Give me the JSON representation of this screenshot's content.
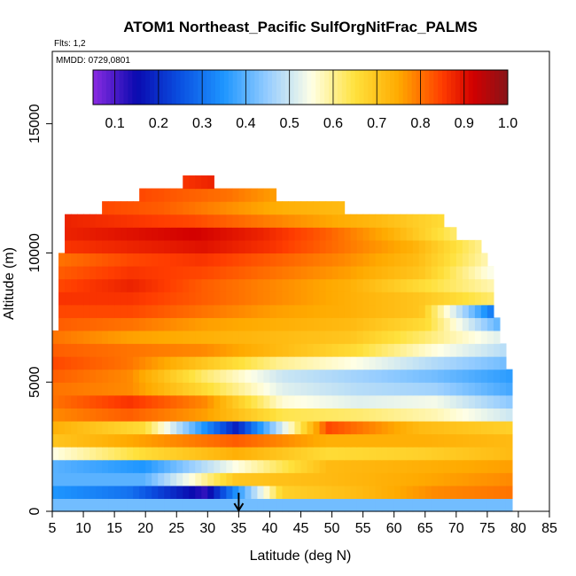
{
  "chart_data": {
    "type": "heatmap",
    "title": "ATOM1 Northeast_Pacific SulfOrgNitFrac_PALMS",
    "subtitle_flights": "Flts: 1,2",
    "subtitle_dates": "MMDD: 0729,0801",
    "xlabel": "Latitude (deg N)",
    "ylabel": "Altitude (m)",
    "xlim": [
      5,
      85
    ],
    "ylim": [
      0,
      17800
    ],
    "xticks": [
      "5",
      "10",
      "15",
      "20",
      "25",
      "30",
      "35",
      "40",
      "45",
      "50",
      "55",
      "60",
      "65",
      "70",
      "75",
      "80",
      "85"
    ],
    "yticks": [
      "0",
      "5000",
      "10000",
      "15000"
    ],
    "colorbar": {
      "range": [
        0.05,
        1.0
      ],
      "ticks": [
        "0.1",
        "0.2",
        "0.3",
        "0.4",
        "0.5",
        "0.6",
        "0.7",
        "0.8",
        "0.9",
        "1.0"
      ]
    },
    "marker": {
      "x": 35,
      "type": "arrow"
    },
    "bands": [
      {
        "y0": 0,
        "y1": 500,
        "x0": 5,
        "x1": 79,
        "values": [
          0.42,
          0.42
        ]
      },
      {
        "y0": 500,
        "y1": 1000,
        "x0": 5,
        "x1": 79,
        "values": [
          0.35,
          0.3,
          0.12,
          0.68,
          0.72,
          0.78,
          0.8
        ]
      },
      {
        "y0": 1000,
        "y1": 1500,
        "x0": 5,
        "x1": 79,
        "values": [
          0.4,
          0.4,
          0.7,
          0.72,
          0.75,
          0.78
        ]
      },
      {
        "y0": 1500,
        "y1": 2000,
        "x0": 5,
        "x1": 79,
        "values": [
          0.4,
          0.35,
          0.55,
          0.72,
          0.74,
          0.76
        ]
      },
      {
        "y0": 2000,
        "y1": 2500,
        "x0": 5,
        "x1": 79,
        "values": [
          0.55,
          0.66,
          0.74,
          0.66,
          0.68,
          0.72
        ]
      },
      {
        "y0": 2500,
        "y1": 3000,
        "x0": 5,
        "x1": 79,
        "values": [
          0.7,
          0.76,
          0.82,
          0.74,
          0.74,
          0.72
        ]
      },
      {
        "y0": 3000,
        "y1": 3500,
        "x0": 5,
        "x1": 79,
        "values": [
          0.74,
          0.66,
          0.18,
          0.84,
          0.72,
          0.68
        ]
      },
      {
        "y0": 3500,
        "y1": 4000,
        "x0": 5,
        "x1": 79,
        "values": [
          0.78,
          0.82,
          0.76,
          0.64,
          0.62,
          0.58,
          0.5
        ]
      },
      {
        "y0": 4000,
        "y1": 4500,
        "x0": 5,
        "x1": 79,
        "values": [
          0.8,
          0.86,
          0.78,
          0.56,
          0.52,
          0.54,
          0.44
        ]
      },
      {
        "y0": 4500,
        "y1": 5000,
        "x0": 5,
        "x1": 79,
        "values": [
          0.8,
          0.78,
          0.66,
          0.52,
          0.48,
          0.46,
          0.38
        ]
      },
      {
        "y0": 5000,
        "y1": 5500,
        "x0": 5,
        "x1": 79,
        "values": [
          0.82,
          0.78,
          0.62,
          0.5,
          0.46,
          0.42,
          0.36
        ]
      },
      {
        "y0": 5500,
        "y1": 6000,
        "x0": 5,
        "x1": 78,
        "values": [
          0.84,
          0.8,
          0.7,
          0.6,
          0.55,
          0.48,
          0.42
        ]
      },
      {
        "y0": 6000,
        "y1": 6500,
        "x0": 5,
        "x1": 78,
        "values": [
          0.82,
          0.8,
          0.78,
          0.72,
          0.66,
          0.56,
          0.48
        ]
      },
      {
        "y0": 6500,
        "y1": 7000,
        "x0": 5,
        "x1": 77,
        "values": [
          0.8,
          0.76,
          0.74,
          0.72,
          0.7,
          0.62,
          0.52
        ]
      },
      {
        "y0": 7000,
        "y1": 7500,
        "x0": 6,
        "x1": 77,
        "values": [
          0.82,
          0.8,
          0.76,
          0.74,
          0.72,
          0.66,
          0.4
        ]
      },
      {
        "y0": 7500,
        "y1": 8000,
        "x0": 6,
        "x1": 76,
        "values": [
          0.84,
          0.84,
          0.8,
          0.76,
          0.74,
          0.7,
          0.3
        ]
      },
      {
        "y0": 8000,
        "y1": 8500,
        "x0": 6,
        "x1": 76,
        "values": [
          0.86,
          0.86,
          0.82,
          0.78,
          0.74,
          0.7,
          0.62
        ]
      },
      {
        "y0": 8500,
        "y1": 9000,
        "x0": 6,
        "x1": 76,
        "values": [
          0.84,
          0.88,
          0.82,
          0.78,
          0.74,
          0.66,
          0.58
        ]
      },
      {
        "y0": 9000,
        "y1": 9500,
        "x0": 6,
        "x1": 76,
        "values": [
          0.82,
          0.86,
          0.84,
          0.8,
          0.76,
          0.7,
          0.54
        ]
      },
      {
        "y0": 9500,
        "y1": 10000,
        "x0": 6,
        "x1": 75,
        "values": [
          0.8,
          0.84,
          0.86,
          0.82,
          0.78,
          0.72,
          0.58
        ]
      },
      {
        "y0": 10000,
        "y1": 10500,
        "x0": 7,
        "x1": 74,
        "values": [
          0.86,
          0.88,
          0.9,
          0.86,
          0.8,
          0.74,
          0.6
        ]
      },
      {
        "y0": 10500,
        "y1": 11000,
        "x0": 7,
        "x1": 70,
        "values": [
          0.88,
          0.9,
          0.92,
          0.88,
          0.82,
          0.74,
          0.62
        ]
      },
      {
        "y0": 11000,
        "y1": 11500,
        "x0": 7,
        "x1": 68,
        "values": [
          0.88,
          0.86,
          0.84,
          0.8,
          0.76,
          0.72,
          0.66
        ]
      },
      {
        "y0": 11500,
        "y1": 12000,
        "x0": 13,
        "x1": 52,
        "values": [
          0.84,
          0.82,
          0.78,
          0.74,
          0.72
        ]
      },
      {
        "y0": 12000,
        "y1": 12500,
        "x0": 19,
        "x1": 41,
        "values": [
          0.84,
          0.82,
          0.8,
          0.76
        ]
      },
      {
        "y0": 12500,
        "y1": 13000,
        "x0": 26,
        "x1": 31,
        "values": [
          0.86,
          0.88
        ]
      }
    ]
  }
}
